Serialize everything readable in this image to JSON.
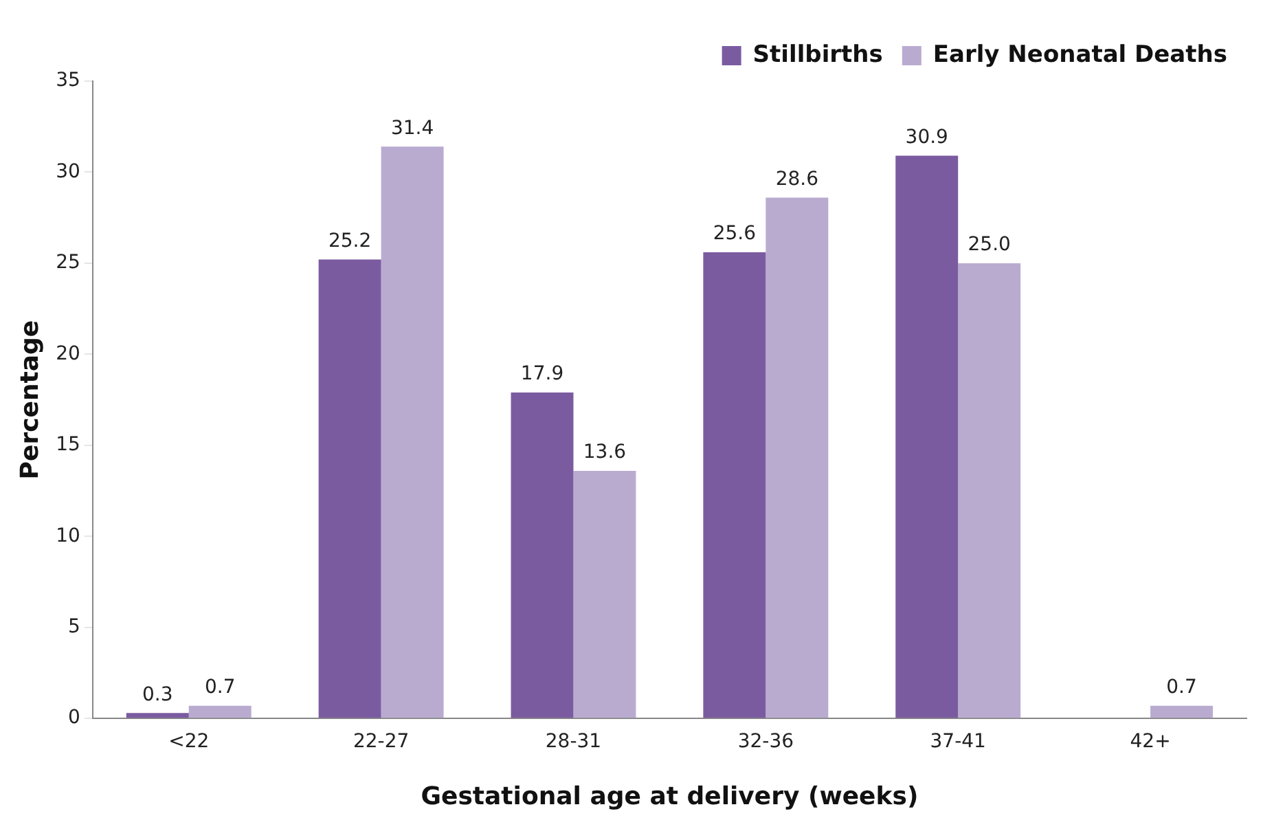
{
  "chart_data": {
    "type": "bar",
    "xlabel": "Gestational age at delivery (weeks)",
    "ylabel": "Percentage",
    "categories": [
      "<22",
      "22-27",
      "28-31",
      "32-36",
      "37-41",
      "42+"
    ],
    "series": [
      {
        "name": "Stillbirths",
        "color": "#7b5ba0",
        "values": [
          0.3,
          25.2,
          17.9,
          25.6,
          30.9,
          null
        ],
        "value_labels": [
          "0.3",
          "25.2",
          "17.9",
          "25.6",
          "30.9",
          null
        ]
      },
      {
        "name": "Early Neonatal Deaths",
        "color": "#b9abd0",
        "values": [
          0.7,
          31.4,
          13.6,
          28.6,
          25.0,
          0.7
        ],
        "value_labels": [
          "0.7",
          "31.4",
          "13.6",
          "28.6",
          "25.0",
          "0.7"
        ]
      }
    ],
    "ylim": [
      0,
      35
    ],
    "yticks": [
      0,
      5,
      10,
      15,
      20,
      25,
      30,
      35
    ],
    "grid": false,
    "legend": "top right"
  }
}
